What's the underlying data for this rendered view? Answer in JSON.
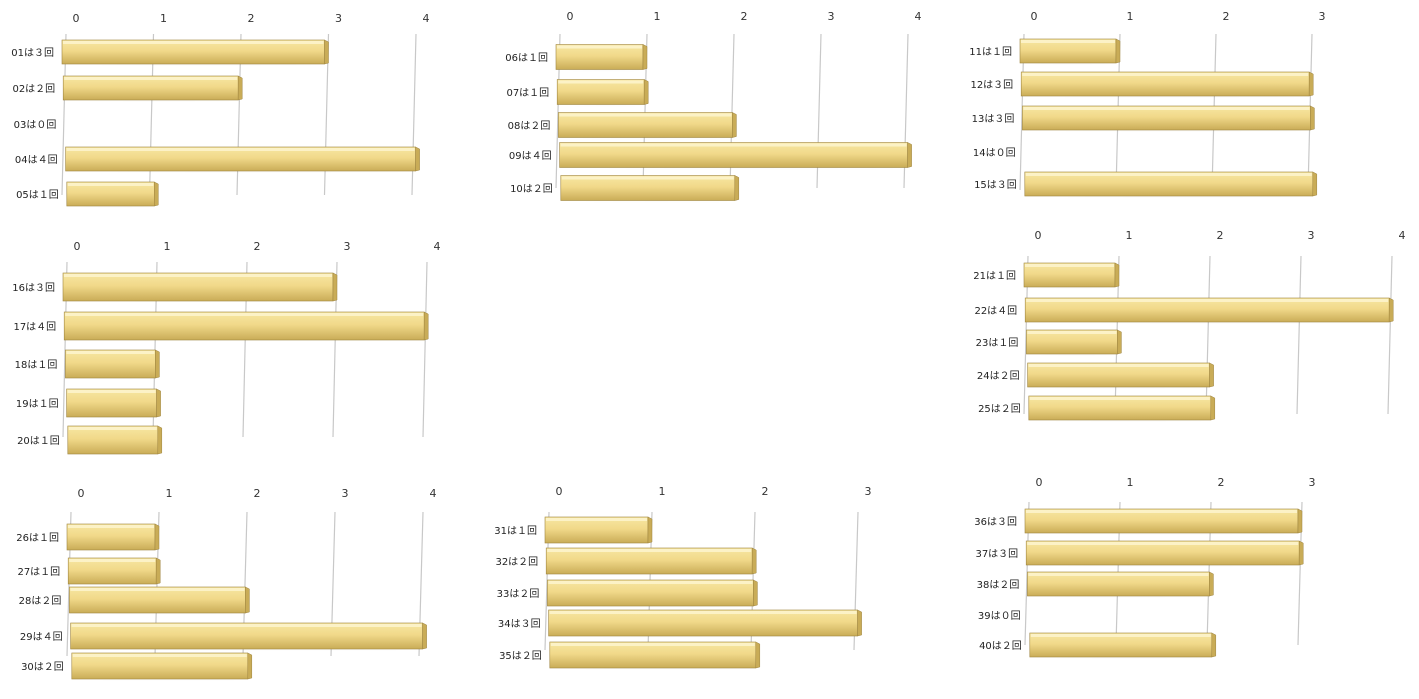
{
  "colors": {
    "bar_top": "#f7e7a2",
    "bar_mid": "#f1d98a",
    "bar_bottom": "#c9ac57",
    "bar_edge": "#9f8540",
    "grid": "#c8c8c8"
  },
  "chart_data": [
    {
      "type": "bar",
      "orientation": "horizontal",
      "xlim": [
        0,
        4
      ],
      "ticks": [
        0,
        1,
        2,
        3,
        4
      ],
      "categories": [
        "01は３回",
        "02は２回",
        "03は０回",
        "04は４回",
        "05は１回"
      ],
      "values": [
        3,
        2,
        0,
        4,
        1
      ]
    },
    {
      "type": "bar",
      "orientation": "horizontal",
      "xlim": [
        0,
        4
      ],
      "ticks": [
        0,
        1,
        2,
        3,
        4
      ],
      "categories": [
        "06は１回",
        "07は１回",
        "08は２回",
        "09は４回",
        "10は２回"
      ],
      "values": [
        1,
        1,
        2,
        4,
        2
      ]
    },
    {
      "type": "bar",
      "orientation": "horizontal",
      "xlim": [
        0,
        3
      ],
      "ticks": [
        0,
        1,
        2,
        3
      ],
      "categories": [
        "11は１回",
        "12は３回",
        "13は３回",
        "14は０回",
        "15は３回"
      ],
      "values": [
        1,
        3,
        3,
        0,
        3
      ]
    },
    {
      "type": "bar",
      "orientation": "horizontal",
      "xlim": [
        0,
        4
      ],
      "ticks": [
        0,
        1,
        2,
        3,
        4
      ],
      "categories": [
        "16は３回",
        "17は４回",
        "18は１回",
        "19は１回",
        "20は１回"
      ],
      "values": [
        3,
        4,
        1,
        1,
        1
      ]
    },
    {
      "type": "bar",
      "orientation": "horizontal",
      "xlim": [
        0,
        4
      ],
      "ticks": [
        0,
        1,
        2,
        3,
        4
      ],
      "categories": [
        "21は１回",
        "22は４回",
        "23は１回",
        "24は２回",
        "25は２回"
      ],
      "values": [
        1,
        4,
        1,
        2,
        2
      ]
    },
    {
      "type": "bar",
      "orientation": "horizontal",
      "xlim": [
        0,
        4
      ],
      "ticks": [
        0,
        1,
        2,
        3,
        4
      ],
      "categories": [
        "26は１回",
        "27は１回",
        "28は２回",
        "29は４回",
        "30は２回"
      ],
      "values": [
        1,
        1,
        2,
        4,
        2
      ]
    },
    {
      "type": "bar",
      "orientation": "horizontal",
      "xlim": [
        0,
        3
      ],
      "ticks": [
        0,
        1,
        2,
        3
      ],
      "categories": [
        "31は１回",
        "32は２回",
        "33は２回",
        "34は３回",
        "35は２回"
      ],
      "values": [
        1,
        2,
        2,
        3,
        2
      ]
    },
    {
      "type": "bar",
      "orientation": "horizontal",
      "xlim": [
        0,
        3
      ],
      "ticks": [
        0,
        1,
        2,
        3
      ],
      "categories": [
        "36は３回",
        "37は３回",
        "38は２回",
        "39は０回",
        "40は２回"
      ],
      "values": [
        3,
        3,
        2,
        0,
        2
      ]
    }
  ]
}
